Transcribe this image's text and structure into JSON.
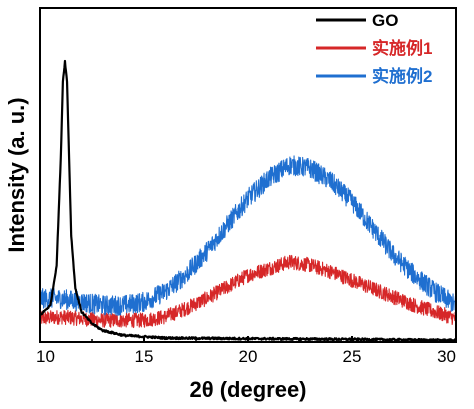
{
  "chart_data": {
    "type": "line",
    "xlabel": "2θ (degree)",
    "ylabel": "Intensity (a. u.)",
    "xlim": [
      10,
      30
    ],
    "ylim": [
      0,
      100
    ],
    "y_ticks_labeled": false,
    "x_ticks": [
      "10",
      "15",
      "20",
      "25",
      "30"
    ],
    "grid": false,
    "legend_position": "top-right",
    "series": [
      {
        "name": "GO",
        "color": "#000000",
        "noise": 0.3,
        "x": [
          10,
          10.5,
          10.8,
          11.0,
          11.1,
          11.2,
          11.3,
          11.4,
          11.5,
          11.7,
          12.0,
          12.5,
          13.0,
          14.0,
          16.0,
          20.0,
          25.0,
          30.0
        ],
        "y": [
          8,
          11,
          23,
          55,
          78,
          84,
          78,
          55,
          32,
          16,
          9,
          5.5,
          3.5,
          2,
          1.2,
          1,
          0.8,
          0.5
        ]
      },
      {
        "name": "实施例1",
        "color": "#d62728",
        "noise": 2.2,
        "x": [
          10,
          11,
          12,
          13,
          14,
          15,
          16,
          17,
          18,
          19,
          20,
          21,
          22,
          23,
          24,
          25,
          26,
          27,
          28,
          29,
          30
        ],
        "y": [
          7,
          7.5,
          7,
          6.5,
          6.5,
          6.5,
          7.5,
          10,
          13,
          16.5,
          20,
          22,
          24,
          23,
          21,
          18.5,
          16,
          13.5,
          11,
          9,
          7
        ]
      },
      {
        "name": "实施例2",
        "color": "#1f6fd0",
        "noise": 3.0,
        "x": [
          10,
          11,
          12,
          13,
          14,
          15,
          16,
          17,
          18,
          19,
          20,
          21,
          22,
          23,
          24,
          25,
          26,
          27,
          28,
          29,
          30
        ],
        "y": [
          13,
          13,
          12,
          11,
          11,
          12,
          15,
          20,
          27,
          35,
          43,
          49,
          53,
          52,
          48,
          42,
          34,
          26,
          20,
          15,
          11
        ]
      }
    ]
  }
}
